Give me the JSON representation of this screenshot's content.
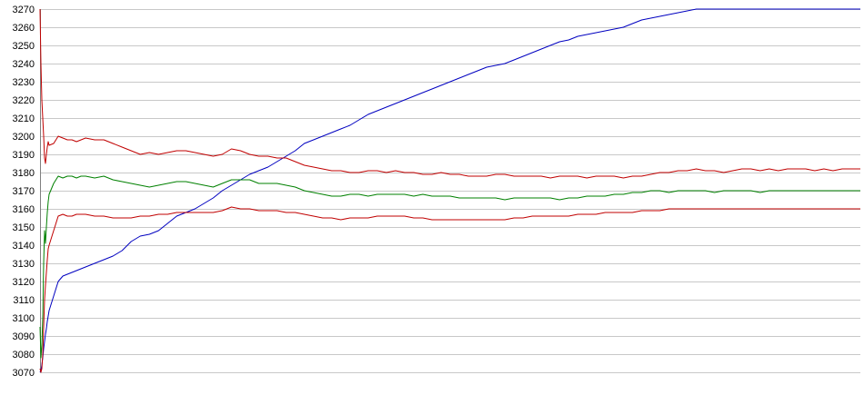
{
  "chart_data": {
    "type": "line",
    "title": "",
    "xlabel": "",
    "ylabel": "",
    "ylim": [
      3070,
      3270
    ],
    "yticks": [
      3070,
      3080,
      3090,
      3100,
      3110,
      3120,
      3130,
      3140,
      3150,
      3160,
      3170,
      3180,
      3190,
      3200,
      3210,
      3220,
      3230,
      3240,
      3250,
      3260,
      3270
    ],
    "grid": true,
    "legend": "none",
    "x": [
      0,
      1,
      2,
      3,
      4,
      5,
      6,
      7,
      8,
      9,
      10,
      15,
      20,
      25,
      30,
      35,
      40,
      45,
      50,
      60,
      70,
      80,
      90,
      100,
      110,
      120,
      130,
      140,
      150,
      160,
      170,
      180,
      190,
      200,
      210,
      220,
      230,
      240,
      250,
      260,
      270,
      280,
      290,
      300,
      310,
      320,
      330,
      340,
      350,
      360,
      370,
      380,
      390,
      400,
      410,
      420,
      430,
      440,
      450,
      460,
      470,
      480,
      490,
      500,
      510,
      520,
      530,
      540,
      550,
      560,
      570,
      580,
      590,
      600,
      610,
      620,
      630,
      640,
      650,
      660,
      670,
      680,
      690,
      700,
      710,
      720,
      730,
      740,
      750,
      760,
      770,
      780,
      790,
      800,
      810,
      820,
      830,
      840,
      850,
      860,
      870,
      880,
      890,
      900
    ],
    "series": [
      {
        "color": "#0000c0",
        "values": [
          3070,
          3071,
          3074,
          3078,
          3083,
          3087,
          3091,
          3094,
          3098,
          3101,
          3104,
          3112,
          3120,
          3123,
          3124,
          3125,
          3126,
          3127,
          3128,
          3130,
          3132,
          3134,
          3137,
          3142,
          3145,
          3146,
          3148,
          3152,
          3156,
          3158,
          3160,
          3163,
          3166,
          3170,
          3173,
          3176,
          3179,
          3181,
          3183,
          3186,
          3189,
          3192,
          3196,
          3198,
          3200,
          3202,
          3204,
          3206,
          3209,
          3212,
          3214,
          3216,
          3218,
          3220,
          3222,
          3224,
          3226,
          3228,
          3230,
          3232,
          3234,
          3236,
          3238,
          3239,
          3240,
          3242,
          3244,
          3246,
          3248,
          3250,
          3252,
          3253,
          3255,
          3256,
          3257,
          3258,
          3259,
          3260,
          3262,
          3264,
          3265,
          3266,
          3267,
          3268,
          3269,
          3270,
          3270,
          3270,
          3270,
          3270,
          3270,
          3270,
          3270,
          3270,
          3270,
          3270,
          3270,
          3270,
          3270,
          3270,
          3270,
          3270,
          3270,
          3270
        ]
      },
      {
        "color": "#c00000",
        "values": [
          3270,
          3240,
          3220,
          3210,
          3200,
          3188,
          3185,
          3190,
          3194,
          3197,
          3195,
          3196,
          3200,
          3199,
          3198,
          3198,
          3197,
          3198,
          3199,
          3198,
          3198,
          3196,
          3194,
          3192,
          3190,
          3191,
          3190,
          3191,
          3192,
          3192,
          3191,
          3190,
          3189,
          3190,
          3193,
          3192,
          3190,
          3189,
          3189,
          3188,
          3188,
          3186,
          3184,
          3183,
          3182,
          3181,
          3181,
          3180,
          3180,
          3181,
          3181,
          3180,
          3181,
          3180,
          3180,
          3179,
          3179,
          3180,
          3179,
          3179,
          3178,
          3178,
          3178,
          3179,
          3179,
          3178,
          3178,
          3178,
          3178,
          3177,
          3178,
          3178,
          3178,
          3177,
          3178,
          3178,
          3178,
          3177,
          3178,
          3178,
          3179,
          3180,
          3180,
          3181,
          3181,
          3182,
          3181,
          3181,
          3180,
          3181,
          3182,
          3182,
          3181,
          3182,
          3181,
          3182,
          3182,
          3182,
          3181,
          3182,
          3181,
          3182,
          3182,
          3182
        ]
      },
      {
        "color": "#008000",
        "values": [
          3095,
          3078,
          3085,
          3100,
          3130,
          3148,
          3141,
          3150,
          3158,
          3164,
          3168,
          3174,
          3178,
          3177,
          3178,
          3178,
          3177,
          3178,
          3178,
          3177,
          3178,
          3176,
          3175,
          3174,
          3173,
          3172,
          3173,
          3174,
          3175,
          3175,
          3174,
          3173,
          3172,
          3174,
          3176,
          3176,
          3176,
          3174,
          3174,
          3174,
          3173,
          3172,
          3170,
          3169,
          3168,
          3167,
          3167,
          3168,
          3168,
          3167,
          3168,
          3168,
          3168,
          3168,
          3167,
          3168,
          3167,
          3167,
          3167,
          3166,
          3166,
          3166,
          3166,
          3166,
          3165,
          3166,
          3166,
          3166,
          3166,
          3166,
          3165,
          3166,
          3166,
          3167,
          3167,
          3167,
          3168,
          3168,
          3169,
          3169,
          3170,
          3170,
          3169,
          3170,
          3170,
          3170,
          3170,
          3169,
          3170,
          3170,
          3170,
          3170,
          3169,
          3170,
          3170,
          3170,
          3170,
          3170,
          3170,
          3170,
          3170,
          3170,
          3170,
          3170
        ]
      },
      {
        "color": "#c00000",
        "values": [
          3072,
          3070,
          3072,
          3080,
          3095,
          3110,
          3118,
          3125,
          3132,
          3138,
          3140,
          3148,
          3156,
          3157,
          3156,
          3156,
          3157,
          3157,
          3157,
          3156,
          3156,
          3155,
          3155,
          3155,
          3156,
          3156,
          3157,
          3157,
          3158,
          3158,
          3158,
          3158,
          3158,
          3159,
          3161,
          3160,
          3160,
          3159,
          3159,
          3159,
          3158,
          3158,
          3157,
          3156,
          3155,
          3155,
          3154,
          3155,
          3155,
          3155,
          3156,
          3156,
          3156,
          3156,
          3155,
          3155,
          3154,
          3154,
          3154,
          3154,
          3154,
          3154,
          3154,
          3154,
          3154,
          3155,
          3155,
          3156,
          3156,
          3156,
          3156,
          3156,
          3157,
          3157,
          3157,
          3158,
          3158,
          3158,
          3158,
          3159,
          3159,
          3159,
          3160,
          3160,
          3160,
          3160,
          3160,
          3160,
          3160,
          3160,
          3160,
          3160,
          3160,
          3160,
          3160,
          3160,
          3160,
          3160,
          3160,
          3160,
          3160,
          3160,
          3160,
          3160
        ]
      }
    ]
  }
}
